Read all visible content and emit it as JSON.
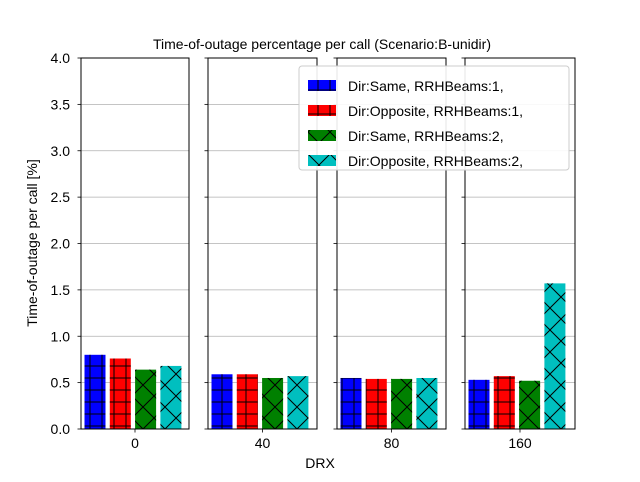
{
  "chart_data": {
    "type": "bar",
    "title": "Time-of-outage percentage per call (Scenario:B-unidir)",
    "xlabel": "DRX",
    "ylabel": "Time-of-outage per call [%]",
    "ylim": [
      0,
      4.0
    ],
    "yticks": [
      "0.0",
      "0.5",
      "1.0",
      "1.5",
      "2.0",
      "2.5",
      "3.0",
      "3.5",
      "4.0"
    ],
    "categories": [
      "0",
      "40",
      "80",
      "160"
    ],
    "grid": true,
    "legend_position": "top-right",
    "series": [
      {
        "name": "Dir:Same, RRHBeams:1,",
        "color": "#0000ff",
        "hatch": "plus",
        "values": [
          0.8,
          0.59,
          0.55,
          0.53
        ]
      },
      {
        "name": "Dir:Opposite, RRHBeams:1,",
        "color": "#ff0000",
        "hatch": "plus",
        "values": [
          0.76,
          0.59,
          0.54,
          0.57
        ]
      },
      {
        "name": "Dir:Same, RRHBeams:2,",
        "color": "#008000",
        "hatch": "x",
        "values": [
          0.64,
          0.55,
          0.54,
          0.52
        ]
      },
      {
        "name": "Dir:Opposite, RRHBeams:2,",
        "color": "#00bfbf",
        "hatch": "x",
        "values": [
          0.68,
          0.57,
          0.55,
          1.57
        ]
      }
    ]
  }
}
